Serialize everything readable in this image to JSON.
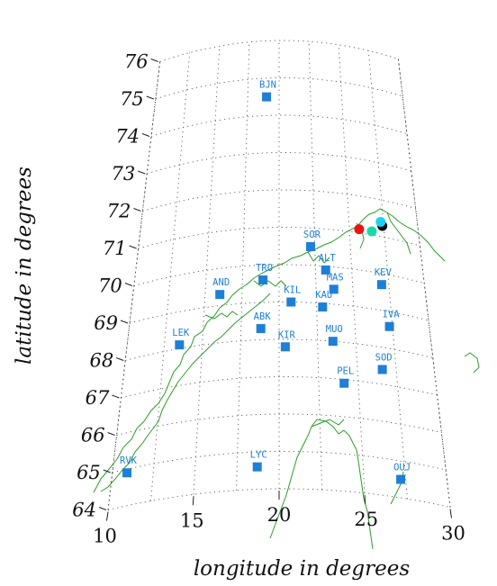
{
  "map": {
    "xlabel": "longitude in degrees",
    "ylabel": "latitude in degrees",
    "lon_ticks": [
      10,
      15,
      20,
      25,
      30
    ],
    "lat_ticks": [
      64,
      65,
      66,
      67,
      68,
      69,
      70,
      71,
      72,
      73,
      74,
      75,
      76
    ],
    "lon_range": [
      10,
      30
    ],
    "lat_range": [
      64,
      76
    ],
    "projection": "conic",
    "graticule": "dotted",
    "coastline_color": "#2a9d2a",
    "station_color": "#1e7fd6",
    "stations": [
      {
        "code": "BJN",
        "lon": 19.0,
        "lat": 74.5
      },
      {
        "code": "SOR",
        "lon": 22.2,
        "lat": 70.5
      },
      {
        "code": "ALT",
        "lon": 23.2,
        "lat": 69.9
      },
      {
        "code": "TRO",
        "lon": 18.9,
        "lat": 69.6
      },
      {
        "code": "AND",
        "lon": 16.0,
        "lat": 69.3
      },
      {
        "code": "MAS",
        "lon": 23.7,
        "lat": 69.4
      },
      {
        "code": "KEV",
        "lon": 27.0,
        "lat": 69.7
      },
      {
        "code": "KIL",
        "lon": 20.8,
        "lat": 69.0
      },
      {
        "code": "KAU",
        "lon": 22.9,
        "lat": 68.9
      },
      {
        "code": "IVA",
        "lon": 27.3,
        "lat": 68.6
      },
      {
        "code": "LEK",
        "lon": 13.5,
        "lat": 68.1
      },
      {
        "code": "ABK",
        "lon": 18.8,
        "lat": 68.3
      },
      {
        "code": "MUO",
        "lon": 23.5,
        "lat": 68.0
      },
      {
        "code": "KIR",
        "lon": 20.4,
        "lat": 67.8
      },
      {
        "code": "SOD",
        "lon": 26.6,
        "lat": 67.4
      },
      {
        "code": "PEL",
        "lon": 24.1,
        "lat": 66.9
      },
      {
        "code": "RVK",
        "lon": 10.9,
        "lat": 64.9
      },
      {
        "code": "LYC",
        "lon": 18.7,
        "lat": 64.6
      },
      {
        "code": "OUJ",
        "lon": 27.2,
        "lat": 64.5
      }
    ],
    "event_markers": [
      {
        "name": "red",
        "color": "#ee1111",
        "lon": 25.7,
        "lat": 71.1
      },
      {
        "name": "green",
        "color": "#19d9a6",
        "lon": 26.6,
        "lat": 71.1
      },
      {
        "name": "black",
        "color": "#000000",
        "lon": 27.4,
        "lat": 71.3
      },
      {
        "name": "cyan",
        "color": "#19d2f0",
        "lon": 27.3,
        "lat": 71.4
      }
    ]
  }
}
